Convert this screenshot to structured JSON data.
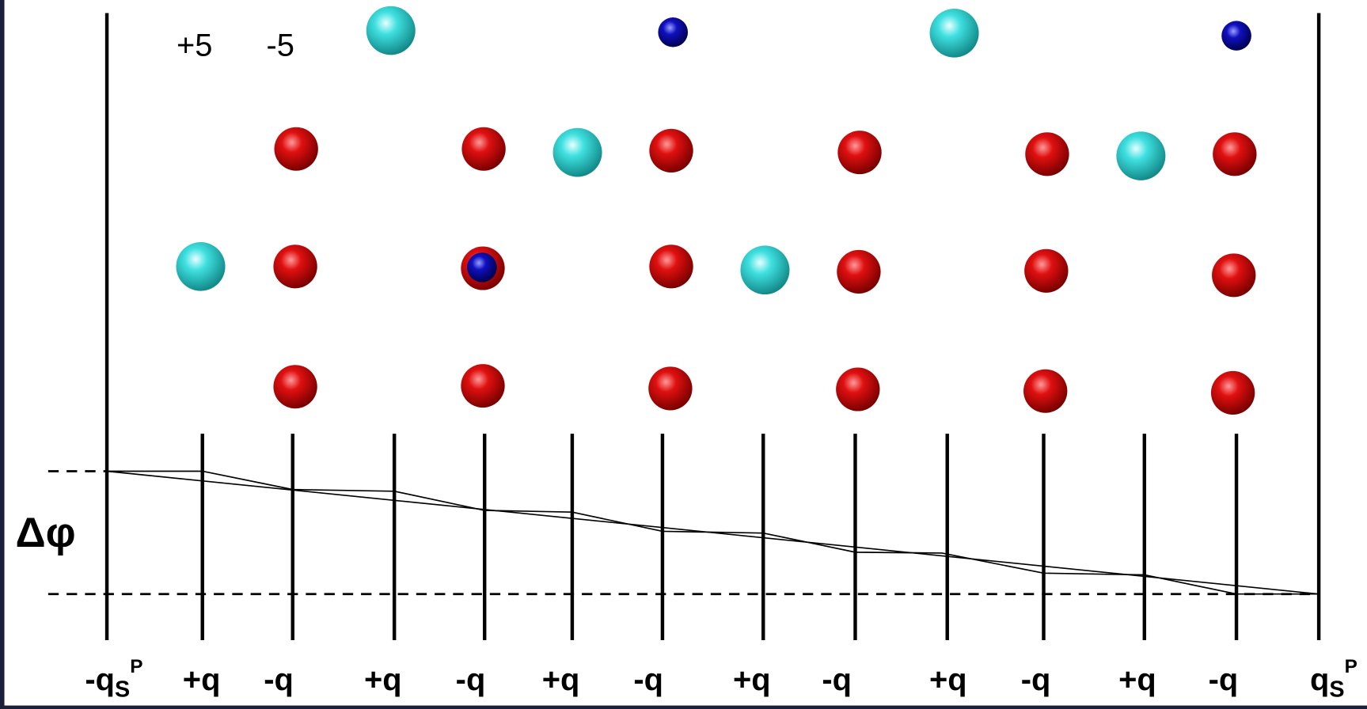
{
  "charges": [
    "+5",
    "-5"
  ],
  "potential_label": "Δφ",
  "site_labels": [
    {
      "text": "-q",
      "sub": "S",
      "sup": "P"
    },
    {
      "text": "+q"
    },
    {
      "text": "-q"
    },
    {
      "text": "+q"
    },
    {
      "text": "-q"
    },
    {
      "text": "+q"
    },
    {
      "text": "-q"
    },
    {
      "text": "+q"
    },
    {
      "text": "-q"
    },
    {
      "text": "+q"
    },
    {
      "text": "-q"
    },
    {
      "text": "+q"
    },
    {
      "text": "-q"
    },
    {
      "text": "q",
      "sub": "S",
      "sup": "P"
    }
  ]
}
